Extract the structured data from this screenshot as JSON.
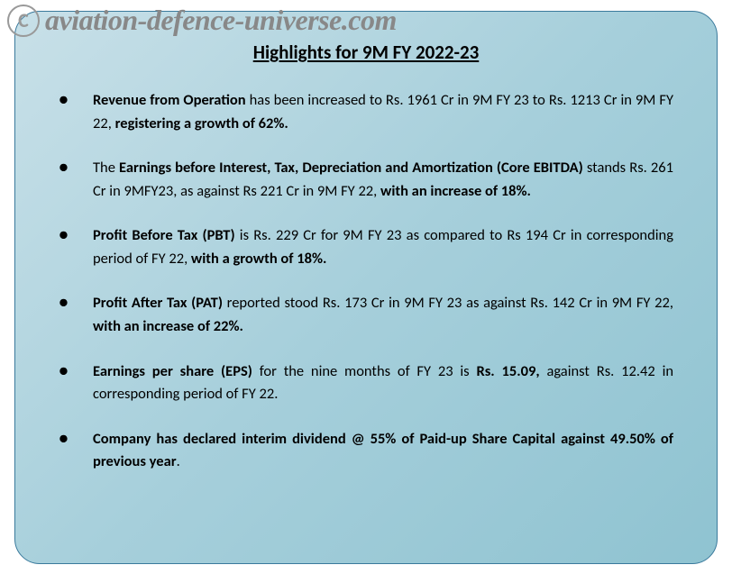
{
  "watermark": {
    "copyright_symbol": "C",
    "text": "aviation-defence-universe.com"
  },
  "title": "Highlights for 9M FY 2022-23",
  "bullets": [
    {
      "b0": "Revenue from Operation",
      "t1": " has been increased to Rs. 1961 Cr in 9M FY 23 to Rs. 1213 Cr in 9M FY 22, ",
      "b2": "registering a growth of 62%."
    },
    {
      "t0": "The ",
      "b1": "Earnings before Interest, Tax, Depreciation and Amortization (Core EBITDA)",
      "t2": " stands Rs. 261 Cr in 9MFY23, as against Rs 221 Cr in 9M FY 22, ",
      "b3": "with an increase of 18%."
    },
    {
      "b0": "Profit Before Tax (PBT)",
      "t1": " is Rs. 229 Cr for 9M FY 23 as compared to Rs 194 Cr in corresponding period of FY 22, ",
      "b2": "with a growth of 18%."
    },
    {
      "b0": "Profit After Tax (PAT)",
      "t1": " reported stood Rs. 173 Cr in 9M FY 23 as against Rs. 142 Cr in 9M FY 22, ",
      "b2": "with an increase of 22%."
    },
    {
      "b0": "Earnings per share (EPS)",
      "t1": " for the nine months of FY 23 is ",
      "b2": "Rs. 15.09,",
      "t3": " against Rs. 12.42 in corresponding period of FY 22."
    },
    {
      "b0": "Company has declared interim dividend @ 55% of Paid-up Share Capital against 49.50% of previous year",
      "t1": "."
    }
  ],
  "colors": {
    "gradient_start": "#c8e0e8",
    "gradient_mid": "#a6cfdb",
    "gradient_end": "#8fc3d1",
    "border": "#3a7a9c",
    "watermark": "#888",
    "text": "#000"
  }
}
